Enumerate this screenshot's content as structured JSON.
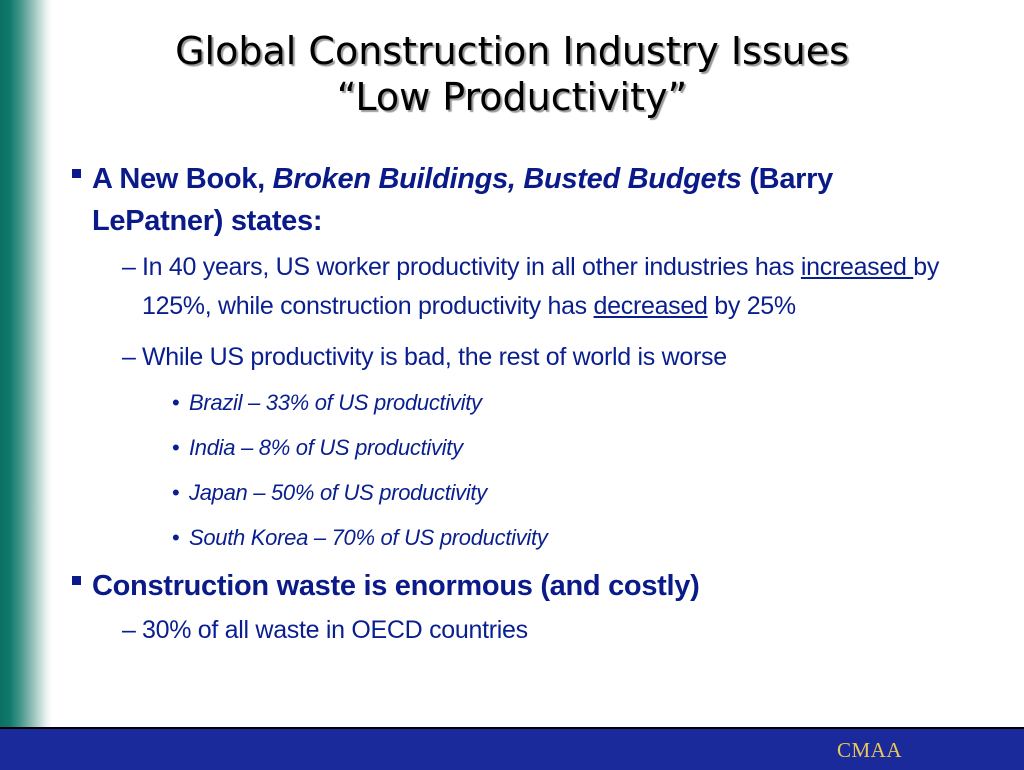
{
  "title": {
    "line1": "Global Construction Industry Issues",
    "line2": "“Low Productivity”"
  },
  "bullet1": {
    "lead": "A New Book, ",
    "book": "Broken Buildings, Busted Budgets",
    "tail": " (Barry LePatner) states:",
    "sub1": {
      "part1": "In 40 years, US worker productivity in all other industries has ",
      "u1": "increased ",
      "part2": "by 125%, while construction productivity has ",
      "u2": "decreased",
      "part3": " by 25%"
    },
    "sub2": {
      "text": "While US productivity is bad, the rest of world is worse",
      "items": [
        "Brazil – 33% of US productivity",
        "India – 8% of US productivity",
        "Japan – 50% of US productivity",
        "South Korea – 70% of US productivity"
      ]
    }
  },
  "bullet2": {
    "text": "Construction waste is enormous (and costly)",
    "sub": "30% of all waste in OECD countries"
  },
  "markers": {
    "dash": "–",
    "dot": "•"
  },
  "footer": {
    "text": "CMAA"
  },
  "colors": {
    "text": "#0a1f8f",
    "sidebar": "#0b6f63",
    "footer_bg": "#1a2a9a",
    "footer_text": "#e8c85a"
  }
}
